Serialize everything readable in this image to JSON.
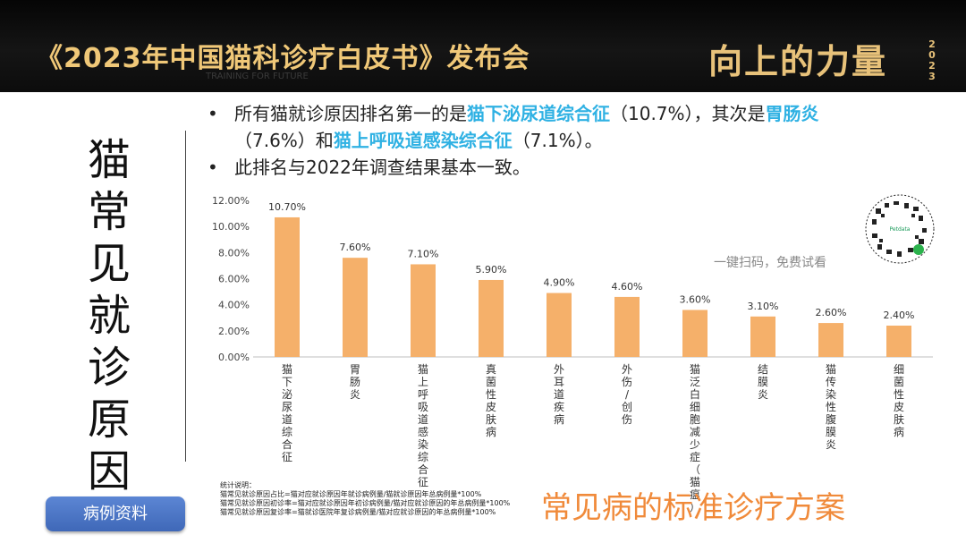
{
  "header": {
    "title": "《2023年中国猫科诊疗白皮书》发布会",
    "slogan": "向上的力量",
    "year": "2023",
    "subtitle": "TRAINING FOR FUTURE"
  },
  "side_title": "猫常见就诊原因",
  "bullets": {
    "b1_pre": "所有猫就诊原因排名第一的是",
    "b1_hl1": "猫下泌尿道综合征",
    "b1_mid1": "（10.7%），其次是",
    "b1_hl2": "胃肠炎",
    "b1_mid2": "（7.6%）和",
    "b1_hl3": "猫上呼吸道感染综合征",
    "b1_post": "（7.1%）。",
    "b2": "此排名与2022年调查结果基本一致。"
  },
  "qr": {
    "caption": "一键扫码，免费试看",
    "brand": "Petdata"
  },
  "notes": {
    "title": "统计说明：",
    "lines": [
      "猫常见就诊原因占比=猫对应就诊原因年就诊病例量/猫就诊原因年总病例量*100%",
      "猫常见就诊原因初诊率=猫对应就诊原因年初诊病例量/猫对应就诊原因的年总病例量*100%",
      "猫常见就诊原因复诊率=猫就诊医院年复诊病例量/猫对应就诊原因的年总病例量*100%"
    ]
  },
  "bottom_slogan": "常见病的标准诊疗方案",
  "case_button": "病例资料",
  "colors": {
    "bar": "#f5b06a",
    "highlight": "#2fb1e3",
    "slogan": "#f08a3a"
  },
  "chart_data": {
    "type": "bar",
    "categories": [
      "猫下泌尿道综合征",
      "胃肠炎",
      "猫上呼吸道感染综合征",
      "真菌性皮肤病",
      "外耳道疾病",
      "外伤/创伤",
      "猫泛白细胞减少症（猫瘟）",
      "结膜炎",
      "猫传染性腹膜炎",
      "细菌性皮肤病"
    ],
    "values": [
      10.7,
      7.6,
      7.1,
      5.9,
      4.9,
      4.6,
      3.6,
      3.1,
      2.6,
      2.4
    ],
    "value_labels": [
      "10.70%",
      "7.60%",
      "7.10%",
      "5.90%",
      "4.90%",
      "4.60%",
      "3.60%",
      "3.10%",
      "2.60%",
      "2.40%"
    ],
    "y_ticks": [
      "0.00%",
      "2.00%",
      "4.00%",
      "6.00%",
      "8.00%",
      "10.00%",
      "12.00%"
    ],
    "ylim": [
      0,
      12
    ],
    "title": "",
    "xlabel": "",
    "ylabel": "",
    "grid": false
  }
}
